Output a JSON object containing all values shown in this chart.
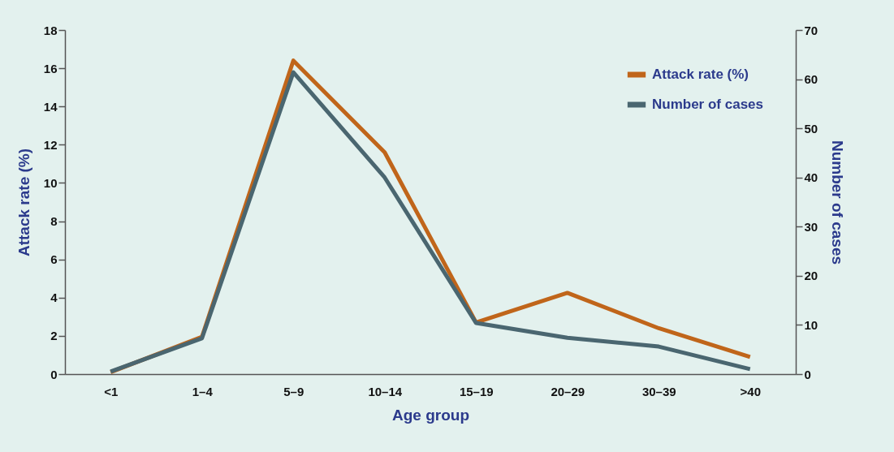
{
  "chart_data": {
    "type": "line",
    "xlabel": "Age group",
    "ylabel": "Attack rate (%)",
    "y2label": "Number of cases",
    "categories": [
      "<1",
      "1–4",
      "5–9",
      "10–14",
      "15–19",
      "20–29",
      "30–39",
      ">40"
    ],
    "series": [
      {
        "name": "Attack rate (%)",
        "color": "#c0651a",
        "values": [
          0.1,
          1.95,
          16.4,
          11.6,
          2.7,
          4.25,
          2.4,
          0.9
        ]
      },
      {
        "name": "Number of cases",
        "color": "#4a6670",
        "axis": "y2",
        "values": [
          0.5,
          7.3,
          61.4,
          40,
          10.4,
          7.4,
          5.6,
          1
        ]
      }
    ],
    "ylim": [
      0,
      18
    ],
    "yticks": [
      0,
      2,
      4,
      6,
      8,
      10,
      12,
      14,
      16,
      18
    ],
    "y2lim": [
      0,
      70
    ],
    "y2ticks": [
      0,
      10,
      20,
      30,
      40,
      50,
      60,
      70
    ],
    "legend": "top right",
    "grid": false,
    "marker": "none",
    "line_style": "solid"
  }
}
